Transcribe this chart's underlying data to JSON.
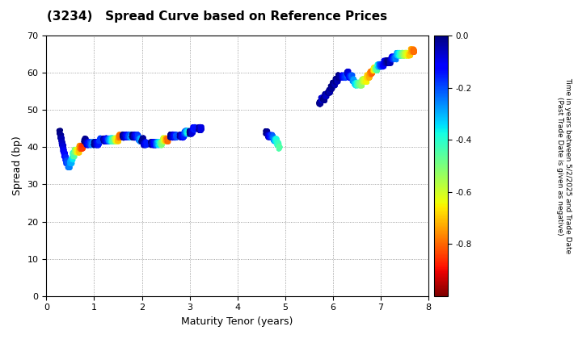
{
  "title": "(3234)   Spread Curve based on Reference Prices",
  "xlabel": "Maturity Tenor (years)",
  "ylabel": "Spread (bp)",
  "colorbar_label": "Time in years between 5/2/2025 and Trade Date\n(Past Trade Date is given as negative)",
  "colorbar_ticks": [
    0.0,
    -0.2,
    -0.4,
    -0.6,
    -0.8
  ],
  "xlim": [
    0,
    8
  ],
  "ylim": [
    0,
    70
  ],
  "xticks": [
    0,
    1,
    2,
    3,
    4,
    5,
    6,
    7,
    8
  ],
  "yticks": [
    0,
    10,
    20,
    30,
    40,
    50,
    60,
    70
  ],
  "background_color": "#ffffff",
  "grid_color": "#888888",
  "cmap": "jet_r",
  "vmin": -1.0,
  "vmax": 0.0,
  "cluster1": {
    "points": [
      [
        0.28,
        44,
        0.0
      ],
      [
        0.3,
        43,
        -0.02
      ],
      [
        0.32,
        42,
        -0.04
      ],
      [
        0.33,
        41,
        -0.06
      ],
      [
        0.35,
        40,
        -0.08
      ],
      [
        0.36,
        39,
        -0.1
      ],
      [
        0.38,
        38,
        -0.12
      ],
      [
        0.4,
        37,
        -0.15
      ],
      [
        0.42,
        36,
        -0.18
      ],
      [
        0.44,
        36,
        -0.2
      ],
      [
        0.46,
        35,
        -0.22
      ],
      [
        0.48,
        35,
        -0.25
      ],
      [
        0.5,
        36,
        -0.28
      ],
      [
        0.52,
        36,
        -0.3
      ],
      [
        0.54,
        37,
        -0.35
      ],
      [
        0.56,
        38,
        -0.4
      ],
      [
        0.58,
        38,
        -0.45
      ],
      [
        0.6,
        39,
        -0.5
      ],
      [
        0.62,
        39,
        -0.55
      ],
      [
        0.64,
        39,
        -0.6
      ],
      [
        0.66,
        39,
        -0.65
      ],
      [
        0.68,
        39,
        -0.7
      ],
      [
        0.7,
        40,
        -0.75
      ],
      [
        0.72,
        40,
        -0.8
      ],
      [
        0.74,
        40,
        -0.82
      ],
      [
        0.76,
        40,
        -0.85
      ],
      [
        0.8,
        42,
        0.0
      ],
      [
        0.82,
        42,
        -0.02
      ],
      [
        0.84,
        41,
        -0.05
      ],
      [
        0.86,
        41,
        -0.08
      ],
      [
        0.88,
        41,
        -0.12
      ],
      [
        0.9,
        41,
        -0.15
      ],
      [
        0.92,
        41,
        -0.18
      ],
      [
        0.94,
        41,
        -0.22
      ],
      [
        0.96,
        41,
        -0.25
      ],
      [
        0.98,
        41,
        -0.28
      ],
      [
        1.0,
        41,
        0.0
      ],
      [
        1.02,
        41,
        -0.02
      ],
      [
        1.04,
        41,
        -0.05
      ],
      [
        1.06,
        41,
        -0.08
      ],
      [
        1.08,
        41,
        -0.12
      ],
      [
        1.1,
        41,
        -0.15
      ],
      [
        1.12,
        42,
        -0.18
      ],
      [
        1.2,
        42,
        -0.02
      ],
      [
        1.22,
        42,
        -0.05
      ],
      [
        1.24,
        42,
        -0.08
      ],
      [
        1.26,
        42,
        -0.12
      ],
      [
        1.28,
        42,
        -0.15
      ],
      [
        1.3,
        42,
        -0.2
      ],
      [
        1.32,
        42,
        -0.25
      ],
      [
        1.34,
        42,
        -0.3
      ],
      [
        1.36,
        42,
        -0.35
      ],
      [
        1.38,
        42,
        -0.4
      ],
      [
        1.4,
        42,
        -0.45
      ],
      [
        1.42,
        42,
        -0.5
      ],
      [
        1.44,
        42,
        -0.55
      ],
      [
        1.46,
        42,
        -0.6
      ],
      [
        1.48,
        42,
        -0.65
      ],
      [
        1.5,
        42,
        -0.7
      ],
      [
        1.52,
        43,
        -0.75
      ],
      [
        1.54,
        43,
        -0.8
      ],
      [
        1.6,
        43,
        0.0
      ],
      [
        1.62,
        43,
        -0.02
      ],
      [
        1.64,
        43,
        -0.05
      ],
      [
        1.66,
        43,
        -0.08
      ],
      [
        1.68,
        43,
        -0.12
      ],
      [
        1.7,
        43,
        -0.15
      ],
      [
        1.72,
        43,
        -0.18
      ],
      [
        1.74,
        43,
        -0.2
      ],
      [
        1.76,
        43,
        -0.25
      ],
      [
        1.78,
        43,
        -0.3
      ],
      [
        1.8,
        43,
        0.0
      ],
      [
        1.82,
        43,
        -0.02
      ],
      [
        1.84,
        43,
        -0.05
      ],
      [
        1.86,
        43,
        -0.08
      ],
      [
        1.88,
        43,
        -0.12
      ],
      [
        1.9,
        43,
        -0.15
      ],
      [
        1.92,
        43,
        -0.18
      ],
      [
        1.94,
        42,
        -0.22
      ],
      [
        1.96,
        42,
        -0.25
      ],
      [
        1.98,
        42,
        -0.3
      ],
      [
        2.0,
        42,
        0.0
      ],
      [
        2.02,
        42,
        -0.02
      ],
      [
        2.04,
        41,
        -0.05
      ],
      [
        2.06,
        41,
        -0.08
      ],
      [
        2.08,
        41,
        -0.12
      ],
      [
        2.1,
        41,
        -0.15
      ],
      [
        2.2,
        41,
        -0.02
      ],
      [
        2.22,
        41,
        -0.05
      ],
      [
        2.24,
        41,
        -0.08
      ],
      [
        2.26,
        41,
        -0.12
      ],
      [
        2.28,
        41,
        -0.15
      ],
      [
        2.3,
        41,
        -0.2
      ],
      [
        2.32,
        41,
        -0.25
      ],
      [
        2.34,
        41,
        -0.3
      ],
      [
        2.36,
        41,
        -0.35
      ],
      [
        2.38,
        41,
        -0.4
      ],
      [
        2.4,
        41,
        -0.45
      ],
      [
        2.42,
        41,
        -0.5
      ],
      [
        2.44,
        42,
        -0.55
      ],
      [
        2.46,
        42,
        -0.6
      ],
      [
        2.48,
        42,
        -0.65
      ],
      [
        2.5,
        42,
        -0.7
      ],
      [
        2.52,
        42,
        -0.75
      ],
      [
        2.54,
        42,
        -0.8
      ],
      [
        2.6,
        43,
        0.0
      ],
      [
        2.62,
        43,
        -0.02
      ],
      [
        2.64,
        43,
        -0.05
      ],
      [
        2.66,
        43,
        -0.08
      ],
      [
        2.68,
        43,
        -0.12
      ],
      [
        2.7,
        43,
        -0.15
      ],
      [
        2.72,
        43,
        -0.2
      ],
      [
        2.8,
        43,
        -0.02
      ],
      [
        2.82,
        43,
        -0.05
      ],
      [
        2.84,
        43,
        -0.08
      ],
      [
        2.86,
        43,
        -0.12
      ],
      [
        2.88,
        43,
        -0.15
      ],
      [
        2.9,
        44,
        -0.2
      ],
      [
        2.92,
        44,
        -0.25
      ],
      [
        2.94,
        44,
        -0.3
      ],
      [
        2.96,
        44,
        -0.35
      ],
      [
        2.98,
        44,
        -0.4
      ],
      [
        3.0,
        44,
        0.0
      ],
      [
        3.02,
        44,
        -0.02
      ],
      [
        3.04,
        44,
        -0.05
      ],
      [
        3.06,
        44,
        -0.08
      ],
      [
        3.08,
        45,
        -0.12
      ],
      [
        3.1,
        45,
        -0.15
      ],
      [
        3.2,
        45,
        -0.02
      ],
      [
        3.22,
        45,
        -0.05
      ],
      [
        3.24,
        45,
        -0.08
      ]
    ]
  },
  "cluster2": {
    "points": [
      [
        4.6,
        44,
        0.0
      ],
      [
        4.62,
        44,
        -0.02
      ],
      [
        4.64,
        43,
        -0.05
      ],
      [
        4.66,
        43,
        -0.08
      ],
      [
        4.68,
        43,
        -0.12
      ],
      [
        4.7,
        43,
        -0.15
      ],
      [
        4.72,
        43,
        -0.18
      ],
      [
        4.74,
        43,
        -0.22
      ],
      [
        4.76,
        42,
        -0.25
      ],
      [
        4.78,
        42,
        -0.3
      ],
      [
        4.8,
        42,
        -0.35
      ],
      [
        4.82,
        42,
        -0.38
      ],
      [
        4.84,
        41,
        -0.4
      ],
      [
        4.86,
        41,
        -0.42
      ],
      [
        4.88,
        40,
        -0.45
      ]
    ]
  },
  "cluster3": {
    "points": [
      [
        5.72,
        52,
        0.0
      ],
      [
        5.74,
        52,
        -0.02
      ],
      [
        5.76,
        53,
        -0.05
      ],
      [
        5.78,
        53,
        -0.08
      ],
      [
        5.8,
        53,
        0.0
      ],
      [
        5.82,
        53,
        -0.02
      ],
      [
        5.84,
        54,
        -0.02
      ],
      [
        5.86,
        54,
        -0.05
      ],
      [
        5.9,
        55,
        0.0
      ],
      [
        5.92,
        55,
        -0.02
      ],
      [
        5.94,
        55,
        -0.04
      ],
      [
        5.96,
        56,
        0.0
      ],
      [
        5.98,
        56,
        -0.02
      ],
      [
        6.0,
        57,
        0.0
      ],
      [
        6.02,
        57,
        -0.02
      ],
      [
        6.04,
        57,
        -0.05
      ],
      [
        6.06,
        58,
        0.0
      ],
      [
        6.08,
        58,
        -0.02
      ],
      [
        6.1,
        58,
        -0.05
      ],
      [
        6.12,
        59,
        0.0
      ],
      [
        6.14,
        59,
        -0.02
      ],
      [
        6.2,
        59,
        -0.1
      ],
      [
        6.22,
        59,
        -0.12
      ],
      [
        6.24,
        59,
        -0.15
      ],
      [
        6.26,
        59,
        -0.18
      ],
      [
        6.28,
        59,
        -0.2
      ],
      [
        6.3,
        60,
        -0.05
      ],
      [
        6.32,
        60,
        -0.08
      ],
      [
        6.34,
        59,
        -0.12
      ],
      [
        6.36,
        59,
        -0.15
      ],
      [
        6.38,
        59,
        -0.18
      ],
      [
        6.4,
        59,
        -0.22
      ],
      [
        6.42,
        58,
        -0.25
      ],
      [
        6.44,
        58,
        -0.28
      ],
      [
        6.46,
        57,
        -0.32
      ],
      [
        6.48,
        57,
        -0.35
      ],
      [
        6.5,
        57,
        -0.38
      ],
      [
        6.52,
        57,
        -0.42
      ],
      [
        6.54,
        57,
        -0.45
      ],
      [
        6.56,
        57,
        -0.48
      ],
      [
        6.58,
        57,
        -0.5
      ],
      [
        6.6,
        57,
        -0.52
      ],
      [
        6.62,
        58,
        -0.55
      ],
      [
        6.64,
        58,
        -0.58
      ],
      [
        6.66,
        58,
        -0.6
      ],
      [
        6.68,
        58,
        -0.62
      ],
      [
        6.7,
        58,
        -0.65
      ],
      [
        6.72,
        59,
        -0.68
      ],
      [
        6.74,
        59,
        -0.7
      ],
      [
        6.76,
        59,
        -0.72
      ],
      [
        6.78,
        60,
        -0.75
      ],
      [
        6.8,
        60,
        -0.78
      ],
      [
        6.82,
        60,
        -0.8
      ],
      [
        6.84,
        61,
        -0.72
      ],
      [
        6.86,
        61,
        -0.65
      ],
      [
        6.88,
        61,
        -0.58
      ],
      [
        6.9,
        61,
        -0.52
      ],
      [
        6.92,
        61,
        -0.45
      ],
      [
        6.94,
        62,
        -0.38
      ],
      [
        6.96,
        62,
        -0.32
      ],
      [
        6.98,
        62,
        -0.25
      ],
      [
        7.0,
        62,
        -0.2
      ],
      [
        7.02,
        62,
        -0.18
      ],
      [
        7.04,
        62,
        -0.15
      ],
      [
        7.06,
        62,
        -0.12
      ],
      [
        7.08,
        63,
        -0.1
      ],
      [
        7.1,
        63,
        -0.08
      ],
      [
        7.12,
        63,
        -0.05
      ],
      [
        7.14,
        63,
        -0.02
      ],
      [
        7.16,
        63,
        0.0
      ],
      [
        7.18,
        63,
        -0.02
      ],
      [
        7.2,
        63,
        -0.05
      ],
      [
        7.22,
        64,
        -0.08
      ],
      [
        7.24,
        64,
        -0.12
      ],
      [
        7.26,
        64,
        -0.15
      ],
      [
        7.28,
        64,
        -0.18
      ],
      [
        7.3,
        64,
        -0.22
      ],
      [
        7.32,
        64,
        -0.25
      ],
      [
        7.34,
        65,
        -0.28
      ],
      [
        7.36,
        65,
        -0.32
      ],
      [
        7.38,
        65,
        -0.35
      ],
      [
        7.4,
        65,
        -0.38
      ],
      [
        7.42,
        65,
        -0.42
      ],
      [
        7.44,
        65,
        -0.45
      ],
      [
        7.46,
        65,
        -0.48
      ],
      [
        7.48,
        65,
        -0.52
      ],
      [
        7.5,
        65,
        -0.55
      ],
      [
        7.52,
        65,
        -0.58
      ],
      [
        7.54,
        65,
        -0.6
      ],
      [
        7.56,
        65,
        -0.62
      ],
      [
        7.58,
        65,
        -0.65
      ],
      [
        7.6,
        65,
        -0.68
      ],
      [
        7.62,
        65,
        -0.7
      ],
      [
        7.64,
        66,
        -0.72
      ],
      [
        7.66,
        66,
        -0.75
      ],
      [
        7.68,
        66,
        -0.78
      ],
      [
        7.7,
        66,
        -0.8
      ]
    ]
  }
}
